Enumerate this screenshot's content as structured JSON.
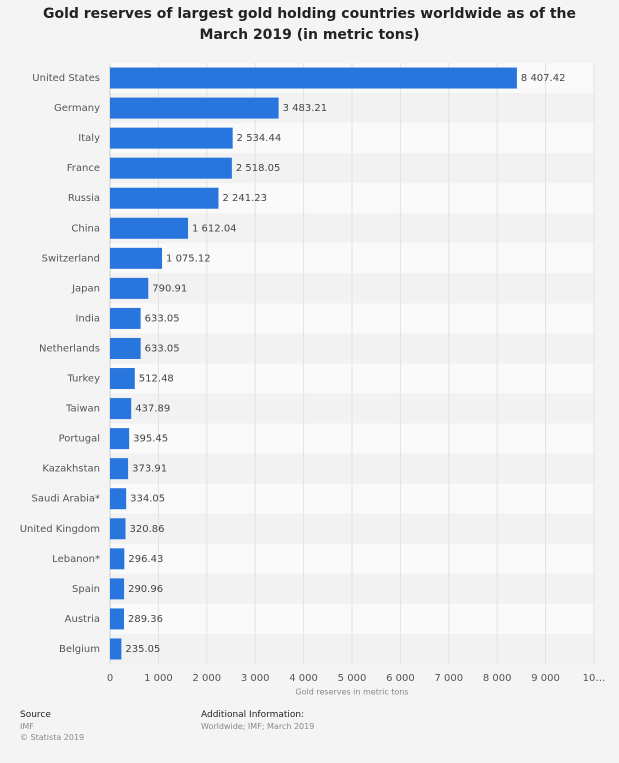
{
  "chart_data": {
    "type": "bar",
    "orientation": "horizontal",
    "title": "Gold reserves of largest gold holding countries worldwide as of the March 2019 (in metric tons)",
    "categories": [
      "United States",
      "Germany",
      "Italy",
      "France",
      "Russia",
      "China",
      "Switzerland",
      "Japan",
      "India",
      "Netherlands",
      "Turkey",
      "Taiwan",
      "Portugal",
      "Kazakhstan",
      "Saudi Arabia*",
      "United Kingdom",
      "Lebanon*",
      "Spain",
      "Austria",
      "Belgium"
    ],
    "values": [
      8407.42,
      3483.21,
      2534.44,
      2518.05,
      2241.23,
      1612.04,
      1075.12,
      790.91,
      633.05,
      633.05,
      512.48,
      437.89,
      395.45,
      373.91,
      334.05,
      320.86,
      296.43,
      290.96,
      289.36,
      235.05
    ],
    "value_labels": [
      "8 407.42",
      "3 483.21",
      "2 534.44",
      "2 518.05",
      "2 241.23",
      "1 612.04",
      "1 075.12",
      "790.91",
      "633.05",
      "633.05",
      "512.48",
      "437.89",
      "395.45",
      "373.91",
      "334.05",
      "320.86",
      "296.43",
      "290.96",
      "289.36",
      "235.05"
    ],
    "color": "#2876dd",
    "xlim": [
      0,
      10000
    ],
    "xticks": [
      0,
      {
        "value": 1000,
        "label": "1 000"
      },
      {
        "value": 2000,
        "label": "2 000"
      },
      {
        "value": 3000,
        "label": "3 000"
      },
      {
        "value": 4000,
        "label": "4 000"
      },
      {
        "value": 5000,
        "label": "5 000"
      },
      {
        "value": 6000,
        "label": "6 000"
      },
      {
        "value": 7000,
        "label": "7 000"
      },
      {
        "value": 8000,
        "label": "8 000"
      },
      {
        "value": 9000,
        "label": "9 000"
      },
      {
        "value": 10000,
        "label": "10…"
      }
    ],
    "xlabel": "Gold reserves in metric tons",
    "grid": true
  },
  "footer": {
    "source_title": "Source",
    "source": "IMF",
    "copyright": "© Statista 2019",
    "info_title": "Additional Information:",
    "info": "Worldwide; IMF; March 2019"
  }
}
